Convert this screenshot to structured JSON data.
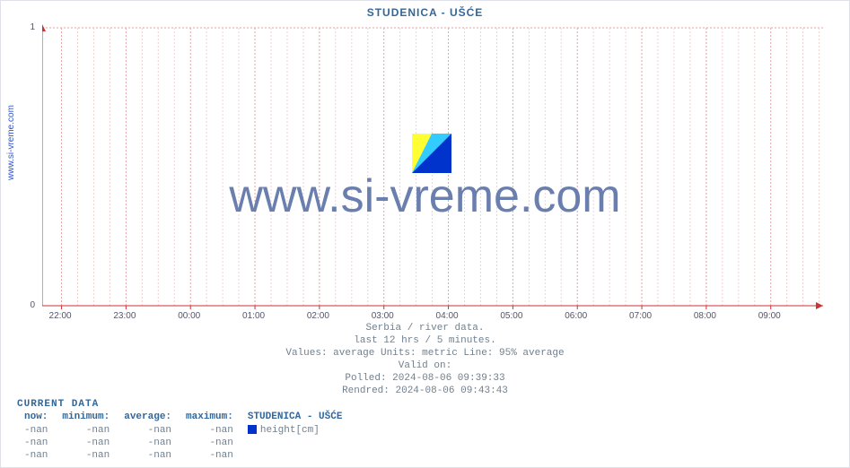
{
  "site_label": "www.si-vreme.com",
  "chart": {
    "title": "STUDENICA -  UŠĆE",
    "type": "line",
    "x_ticks": [
      "22:00",
      "23:00",
      "00:00",
      "01:00",
      "02:00",
      "03:00",
      "04:00",
      "05:00",
      "06:00",
      "07:00",
      "08:00",
      "09:00"
    ],
    "y_ticks": [
      "0",
      "1"
    ],
    "ylim": [
      0,
      1
    ],
    "xlim_labels": [
      "22:00",
      "09:00"
    ],
    "grid_major_color": "#e8a0a0",
    "grid_minor_color": "#f4d0d0",
    "grid_dash": "2,2",
    "axis_line_color": "#cc3333",
    "background_color": "#ffffff",
    "tick_font_size": 10,
    "tick_color": "#555566",
    "series": [],
    "watermark_text": "www.si-vreme.com",
    "watermark_color": "#6a7fae",
    "watermark_font_size": 52,
    "logo_colors": {
      "tri1": "#ffff33",
      "tri2": "#33ccff",
      "tri3": "#0033cc"
    }
  },
  "info": {
    "line1": "Serbia / river data.",
    "line2": "last 12 hrs / 5 minutes.",
    "line3": "Values: average  Units: metric  Line: 95% average",
    "line4": "Valid on:",
    "line5": "Polled: 2024-08-06 09:39:33",
    "line6": "Rendred: 2024-08-06 09:43:43"
  },
  "current_data": {
    "heading": "CURRENT DATA",
    "columns": [
      "now:",
      "minimum:",
      "average:",
      "maximum:"
    ],
    "series_label": "STUDENICA -  UŠĆE",
    "rows": [
      {
        "now": "-nan",
        "min": "-nan",
        "avg": "-nan",
        "max": "-nan",
        "name": "height[cm]",
        "swatch": "#0033cc"
      },
      {
        "now": "-nan",
        "min": "-nan",
        "avg": "-nan",
        "max": "-nan",
        "name": "",
        "swatch": ""
      },
      {
        "now": "-nan",
        "min": "-nan",
        "avg": "-nan",
        "max": "-nan",
        "name": "",
        "swatch": ""
      }
    ]
  }
}
